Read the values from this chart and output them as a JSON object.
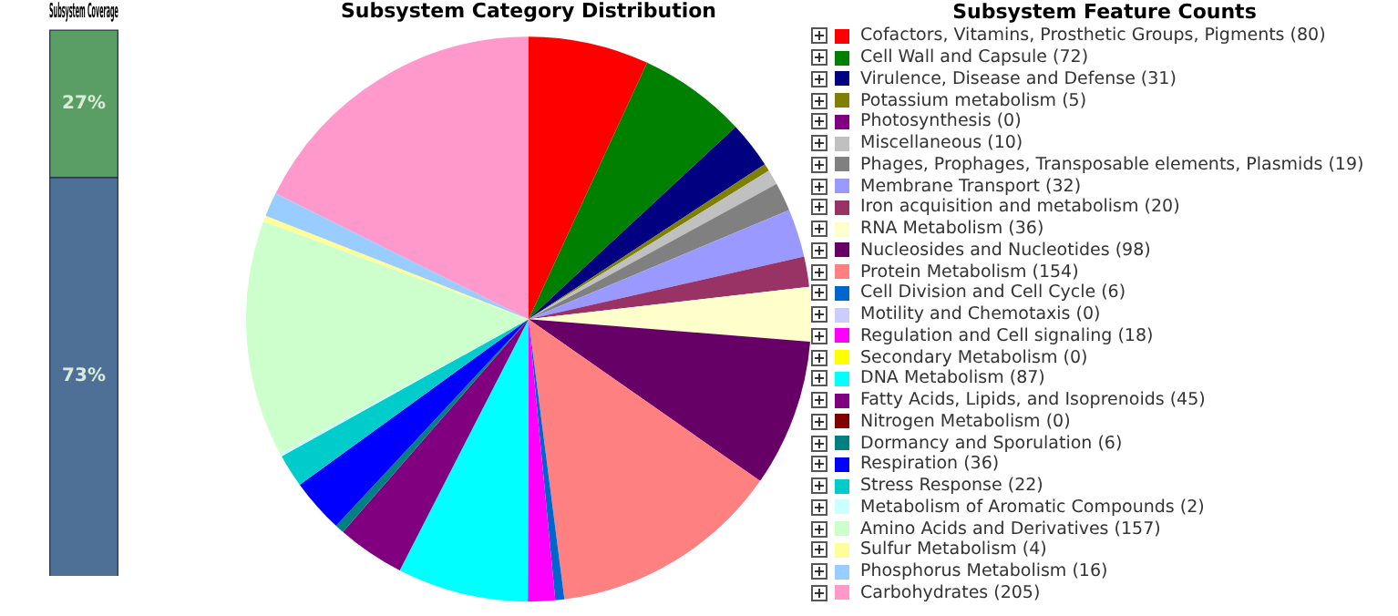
{
  "chart_data": [
    {
      "type": "bar",
      "title": "Subsystem Coverage",
      "categories": [
        null
      ],
      "stacked": true,
      "ylim": [
        0,
        100
      ],
      "tick_labels": false,
      "series": [
        {
          "color": "#4e7096",
          "values": [
            73
          ],
          "value_labels": [
            "73%"
          ]
        },
        {
          "color": "#5a9e65",
          "values": [
            27
          ],
          "value_labels": [
            "27%"
          ]
        }
      ]
    },
    {
      "type": "pie",
      "title": "Subsystem Category Distribution",
      "legend_title": "Subsystem Feature Counts",
      "legend": "right",
      "categories": [
        "Cofactors, Vitamins, Prosthetic Groups, Pigments (80)",
        "Cell Wall and Capsule (72)",
        "Virulence, Disease and Defense (31)",
        "Potassium metabolism (5)",
        "Photosynthesis (0)",
        "Miscellaneous (10)",
        "Phages, Prophages, Transposable elements, Plasmids (19)",
        "Membrane Transport (32)",
        "Iron acquisition and metabolism (20)",
        "RNA Metabolism (36)",
        "Nucleosides and Nucleotides (98)",
        "Protein Metabolism (154)",
        "Cell Division and Cell Cycle (6)",
        "Motility and Chemotaxis (0)",
        "Regulation and Cell signaling (18)",
        "Secondary Metabolism (0)",
        "DNA Metabolism (87)",
        "Fatty Acids, Lipids, and Isoprenoids (45)",
        "Nitrogen Metabolism (0)",
        "Dormancy and Sporulation (6)",
        "Respiration (36)",
        "Stress Response (22)",
        "Metabolism of Aromatic Compounds (2)",
        "Amino Acids and Derivatives (157)",
        "Sulfur Metabolism (4)",
        "Phosphorus Metabolism (16)",
        "Carbohydrates (205)"
      ],
      "values": [
        80,
        72,
        31,
        5,
        0,
        10,
        19,
        32,
        20,
        36,
        98,
        154,
        6,
        0,
        18,
        0,
        87,
        45,
        0,
        6,
        36,
        22,
        2,
        157,
        4,
        16,
        205
      ],
      "colors": [
        "#ff0000",
        "#008000",
        "#000080",
        "#808000",
        "#800080",
        "#c0c0c0",
        "#808080",
        "#9999ff",
        "#993366",
        "#ffffcc",
        "#660066",
        "#ff8080",
        "#0066cc",
        "#ccccff",
        "#ff00ff",
        "#ffff00",
        "#00ffff",
        "#800080",
        "#800000",
        "#008080",
        "#0000ff",
        "#00cccc",
        "#ccffff",
        "#ccffcc",
        "#ffff99",
        "#99ccff",
        "#ff99cc"
      ]
    }
  ]
}
